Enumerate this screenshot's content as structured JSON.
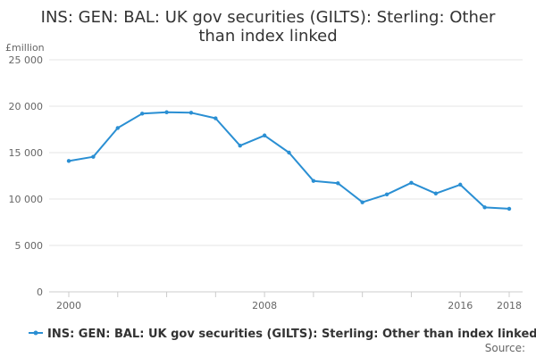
{
  "chart_data": {
    "type": "line",
    "title_lines": [
      "INS: GEN: BAL: UK gov securities (GILTS): Sterling: Other",
      "than index linked"
    ],
    "unit_label": "£million",
    "x": [
      2000,
      2001,
      2002,
      2003,
      2004,
      2005,
      2006,
      2007,
      2008,
      2009,
      2010,
      2011,
      2012,
      2013,
      2014,
      2015,
      2016,
      2017,
      2018
    ],
    "x_tick_labels": [
      "2000",
      "2008",
      "2016",
      "2018"
    ],
    "y_tick_labels": [
      "0",
      "5 000",
      "10 000",
      "15 000",
      "20 000",
      "25 000"
    ],
    "ylim": [
      0,
      25000
    ],
    "series": [
      {
        "name": "INS: GEN: BAL: UK gov securities (GILTS): Sterling: Other than index linked",
        "color": "#2a8fd3",
        "values": [
          14100,
          14550,
          17650,
          19200,
          19350,
          19300,
          18700,
          15750,
          16850,
          15000,
          11950,
          11700,
          9650,
          10500,
          11750,
          10600,
          11550,
          9100,
          8950
        ]
      }
    ],
    "grid": "horizontal",
    "legend_position": "bottom",
    "source_label": "Source:"
  }
}
